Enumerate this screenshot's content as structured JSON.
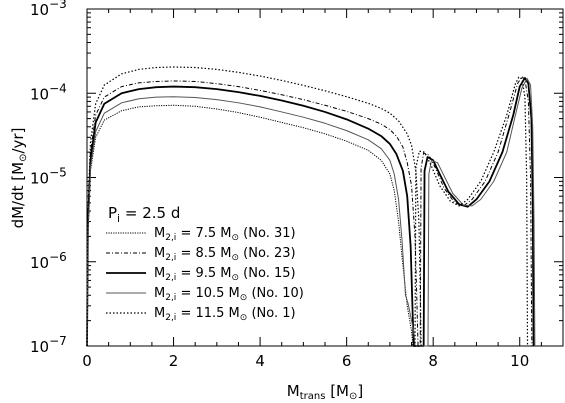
{
  "chart_data": {
    "type": "line",
    "xlabel": {
      "main": "M",
      "sub": "trans",
      "unit": "[M",
      "unit_tail": "]",
      "sun": "⊙"
    },
    "ylabel": {
      "main": "dM/dt",
      "unit": "[M",
      "sun": "⊙",
      "unit_tail": "/yr]"
    },
    "xlim": [
      0,
      11
    ],
    "ylim": [
      1e-07,
      0.001
    ],
    "yscale": "log",
    "x_major_ticks": [
      0,
      2,
      4,
      6,
      8,
      10
    ],
    "x_tick_labels": [
      "0",
      "2",
      "4",
      "6",
      "8",
      "10"
    ],
    "y_major_ticks": [
      1e-07,
      1e-06,
      1e-05,
      0.0001,
      0.001
    ],
    "y_tick_labels": [
      {
        "base": "10",
        "exp": "−7"
      },
      {
        "base": "10",
        "exp": "−6"
      },
      {
        "base": "10",
        "exp": "−5"
      },
      {
        "base": "10",
        "exp": "−4"
      },
      {
        "base": "10",
        "exp": "−3"
      }
    ],
    "annotation": {
      "main": "P",
      "sub": "i",
      "rest": " = 2.5 d"
    },
    "legend_position": "lower-left",
    "series": [
      {
        "name": "7.5 M⊙ (No. 31)",
        "label": {
          "m": "M",
          "sub": "2,i",
          "val": " = 7.5 M",
          "tail": " (No. 31)"
        },
        "style": "dotted-fine",
        "points": [
          [
            0,
            1e-07
          ],
          [
            0.02,
            2e-06
          ],
          [
            0.08,
            1.2e-05
          ],
          [
            0.2,
            3e-05
          ],
          [
            0.4,
            4.8e-05
          ],
          [
            0.8,
            6.2e-05
          ],
          [
            1.2,
            6.9e-05
          ],
          [
            1.6,
            7.1e-05
          ],
          [
            2.0,
            7.2e-05
          ],
          [
            2.5,
            7e-05
          ],
          [
            3.0,
            6.5e-05
          ],
          [
            3.5,
            5.9e-05
          ],
          [
            4.0,
            5.2e-05
          ],
          [
            4.5,
            4.5e-05
          ],
          [
            5.0,
            3.9e-05
          ],
          [
            5.5,
            3.3e-05
          ],
          [
            6.0,
            2.7e-05
          ],
          [
            6.5,
            2.1e-05
          ],
          [
            6.8,
            1.6e-05
          ],
          [
            7.0,
            1.1e-05
          ],
          [
            7.1,
            7e-06
          ],
          [
            7.2,
            3e-06
          ],
          [
            7.3,
            9e-07
          ],
          [
            7.4,
            3e-07
          ],
          [
            7.5,
            1.5e-07
          ],
          [
            7.53,
            1e-07
          ]
        ]
      },
      {
        "name": "8.5 M⊙ (No. 23)",
        "label": {
          "m": "M",
          "sub": "2,i",
          "val": " = 8.5 M",
          "tail": " (No. 23)"
        },
        "style": "dashdot",
        "points": [
          [
            0,
            1e-07
          ],
          [
            0.02,
            3e-06
          ],
          [
            0.08,
            2e-05
          ],
          [
            0.2,
            5.5e-05
          ],
          [
            0.4,
            9e-05
          ],
          [
            0.8,
            0.00012
          ],
          [
            1.2,
            0.000133
          ],
          [
            1.6,
            0.000138
          ],
          [
            2.0,
            0.00014
          ],
          [
            2.5,
            0.000138
          ],
          [
            3.0,
            0.00013
          ],
          [
            3.5,
            0.00012
          ],
          [
            4.0,
            0.000108
          ],
          [
            4.5,
            9.6e-05
          ],
          [
            5.0,
            8.4e-05
          ],
          [
            5.5,
            7.2e-05
          ],
          [
            6.0,
            6.1e-05
          ],
          [
            6.5,
            5e-05
          ],
          [
            6.8,
            4.3e-05
          ],
          [
            7.0,
            3.7e-05
          ],
          [
            7.15,
            3.1e-05
          ],
          [
            7.3,
            2.3e-05
          ],
          [
            7.4,
            1.5e-05
          ],
          [
            7.5,
            8e-06
          ],
          [
            7.58,
            2e-06
          ],
          [
            7.62,
            4e-07
          ],
          [
            7.65,
            1e-07
          ],
          [
            7.7,
            1e-07
          ],
          [
            7.72,
            1.3e-05
          ],
          [
            7.78,
            1.95e-05
          ],
          [
            7.9,
            1.85e-05
          ],
          [
            8.05,
            1.3e-05
          ],
          [
            8.25,
            7.5e-06
          ],
          [
            8.5,
            5e-06
          ],
          [
            8.7,
            4.6e-06
          ],
          [
            8.9,
            5.5e-06
          ],
          [
            9.2,
            9e-06
          ],
          [
            9.5,
            2e-05
          ],
          [
            9.75,
            5.5e-05
          ],
          [
            9.95,
            0.00013
          ],
          [
            10.05,
            0.000158
          ],
          [
            10.12,
            0.000145
          ],
          [
            10.2,
            8e-05
          ],
          [
            10.25,
            1e-05
          ],
          [
            10.28,
            1e-07
          ]
        ]
      },
      {
        "name": "9.5 M⊙ (No. 15)",
        "label": {
          "m": "M",
          "sub": "2,i",
          "val": " = 9.5 M",
          "tail": " (No. 15)"
        },
        "style": "solid-thick",
        "points": [
          [
            0,
            1e-07
          ],
          [
            0.02,
            2.6e-06
          ],
          [
            0.08,
            1.6e-05
          ],
          [
            0.2,
            4.5e-05
          ],
          [
            0.4,
            7.5e-05
          ],
          [
            0.8,
            0.0001
          ],
          [
            1.2,
            0.000112
          ],
          [
            1.6,
            0.000118
          ],
          [
            2.0,
            0.00012
          ],
          [
            2.5,
            0.000118
          ],
          [
            3.0,
            0.000112
          ],
          [
            3.5,
            0.000103
          ],
          [
            4.0,
            9.3e-05
          ],
          [
            4.5,
            8.2e-05
          ],
          [
            5.0,
            7.1e-05
          ],
          [
            5.5,
            6e-05
          ],
          [
            6.0,
            4.9e-05
          ],
          [
            6.5,
            3.8e-05
          ],
          [
            6.8,
            3.1e-05
          ],
          [
            7.0,
            2.5e-05
          ],
          [
            7.15,
            1.9e-05
          ],
          [
            7.3,
            1.2e-05
          ],
          [
            7.4,
            6e-06
          ],
          [
            7.48,
            1.5e-06
          ],
          [
            7.52,
            3e-07
          ],
          [
            7.55,
            1e-07
          ],
          [
            7.78,
            1e-07
          ],
          [
            7.8,
            1.2e-05
          ],
          [
            7.87,
            1.75e-05
          ],
          [
            8.0,
            1.6e-05
          ],
          [
            8.15,
            1.1e-05
          ],
          [
            8.35,
            6.8e-06
          ],
          [
            8.6,
            4.8e-06
          ],
          [
            8.8,
            4.5e-06
          ],
          [
            9.0,
            5.5e-06
          ],
          [
            9.3,
            9e-06
          ],
          [
            9.6,
            2e-05
          ],
          [
            9.85,
            5.5e-05
          ],
          [
            10.0,
            0.00012
          ],
          [
            10.12,
            0.000152
          ],
          [
            10.2,
            0.00013
          ],
          [
            10.27,
            5e-05
          ],
          [
            10.3,
            5e-06
          ],
          [
            10.32,
            1e-07
          ]
        ]
      },
      {
        "name": "10.5 M⊙ (No. 10)",
        "label": {
          "m": "M",
          "sub": "2,i",
          "val": " = 10.5 M",
          "tail": " (No. 10)"
        },
        "style": "solid-thin-gray",
        "points": [
          [
            0,
            1e-07
          ],
          [
            0.02,
            2.2e-06
          ],
          [
            0.08,
            1.3e-05
          ],
          [
            0.2,
            3.5e-05
          ],
          [
            0.4,
            5.8e-05
          ],
          [
            0.8,
            7.7e-05
          ],
          [
            1.2,
            8.6e-05
          ],
          [
            1.6,
            9e-05
          ],
          [
            2.0,
            9.1e-05
          ],
          [
            2.5,
            8.9e-05
          ],
          [
            3.0,
            8.4e-05
          ],
          [
            3.5,
            7.7e-05
          ],
          [
            4.0,
            6.9e-05
          ],
          [
            4.5,
            6e-05
          ],
          [
            5.0,
            5.2e-05
          ],
          [
            5.5,
            4.4e-05
          ],
          [
            6.0,
            3.6e-05
          ],
          [
            6.5,
            2.8e-05
          ],
          [
            6.8,
            2.2e-05
          ],
          [
            7.0,
            1.6e-05
          ],
          [
            7.1,
            1.1e-05
          ],
          [
            7.2,
            5.5e-06
          ],
          [
            7.28,
            1.8e-06
          ],
          [
            7.33,
            7e-07
          ],
          [
            7.36,
            4e-07
          ],
          [
            7.42,
            3.2e-07
          ],
          [
            7.5,
            2e-07
          ],
          [
            7.55,
            1.5e-07
          ],
          [
            7.58,
            1e-07
          ],
          [
            7.88,
            1e-07
          ],
          [
            7.9,
            1.1e-05
          ],
          [
            7.96,
            1.6e-05
          ],
          [
            8.1,
            1.5e-05
          ],
          [
            8.25,
            1.05e-05
          ],
          [
            8.45,
            6.5e-06
          ],
          [
            8.7,
            4.7e-06
          ],
          [
            8.9,
            4.6e-06
          ],
          [
            9.1,
            5.5e-06
          ],
          [
            9.4,
            9e-06
          ],
          [
            9.7,
            2e-05
          ],
          [
            9.9,
            5.5e-05
          ],
          [
            10.05,
            0.000115
          ],
          [
            10.17,
            0.00015
          ],
          [
            10.25,
            0.000125
          ],
          [
            10.3,
            4e-05
          ],
          [
            10.33,
            3e-06
          ],
          [
            10.35,
            1e-07
          ]
        ]
      },
      {
        "name": "11.5 M⊙ (No. 1)",
        "label": {
          "m": "M",
          "sub": "2,i",
          "val": " = 11.5 M",
          "tail": " (No. 1)"
        },
        "style": "dotted",
        "points": [
          [
            0,
            1e-07
          ],
          [
            0.02,
            3.5e-06
          ],
          [
            0.08,
            2.6e-05
          ],
          [
            0.2,
            7.5e-05
          ],
          [
            0.4,
            0.000125
          ],
          [
            0.8,
            0.00017
          ],
          [
            1.2,
            0.000192
          ],
          [
            1.6,
            0.000202
          ],
          [
            2.0,
            0.000205
          ],
          [
            2.5,
            0.000202
          ],
          [
            3.0,
            0.000192
          ],
          [
            3.5,
            0.000177
          ],
          [
            4.0,
            0.00016
          ],
          [
            4.5,
            0.000142
          ],
          [
            5.0,
            0.000124
          ],
          [
            5.5,
            0.000107
          ],
          [
            6.0,
            9.1e-05
          ],
          [
            6.5,
            7.6e-05
          ],
          [
            6.8,
            6.6e-05
          ],
          [
            7.0,
            5.8e-05
          ],
          [
            7.2,
            4.7e-05
          ],
          [
            7.4,
            3.3e-05
          ],
          [
            7.5,
            2.4e-05
          ],
          [
            7.6,
            1.2e-05
          ],
          [
            7.67,
            3e-06
          ],
          [
            7.7,
            5e-07
          ],
          [
            7.72,
            1e-07
          ],
          [
            7.58,
            1e-07
          ],
          [
            7.6,
            1.3e-05
          ],
          [
            7.68,
            2.05e-05
          ],
          [
            7.8,
            2e-05
          ],
          [
            7.95,
            1.4e-05
          ],
          [
            8.15,
            8e-06
          ],
          [
            8.4,
            5.2e-06
          ],
          [
            8.6,
            4.6e-06
          ],
          [
            8.8,
            5.5e-06
          ],
          [
            9.1,
            9e-06
          ],
          [
            9.4,
            2e-05
          ],
          [
            9.7,
            5.5e-05
          ],
          [
            9.9,
            0.00013
          ],
          [
            9.98,
            0.000155
          ],
          [
            10.05,
            0.00015
          ],
          [
            10.12,
            9e-05
          ],
          [
            10.16,
            1e-05
          ],
          [
            10.18,
            1e-07
          ]
        ]
      }
    ]
  }
}
